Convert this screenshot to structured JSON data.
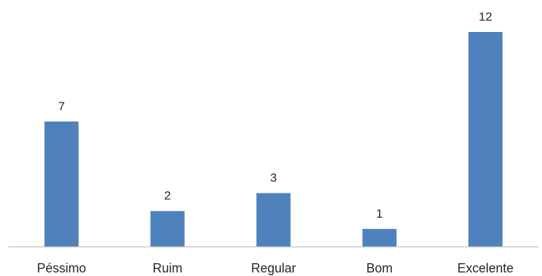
{
  "chart_data": {
    "type": "bar",
    "categories": [
      "Péssimo",
      "Ruim",
      "Regular",
      "Bom",
      "Excelente"
    ],
    "values": [
      7,
      2,
      3,
      1,
      12
    ],
    "data_labels": [
      "7",
      "2",
      "3",
      "1",
      "12"
    ],
    "title": "",
    "xlabel": "",
    "ylabel": "",
    "ylim": [
      0,
      12
    ],
    "grid": false,
    "bar_color": "#4f81bd",
    "axis_color": "#bfbfbf"
  }
}
